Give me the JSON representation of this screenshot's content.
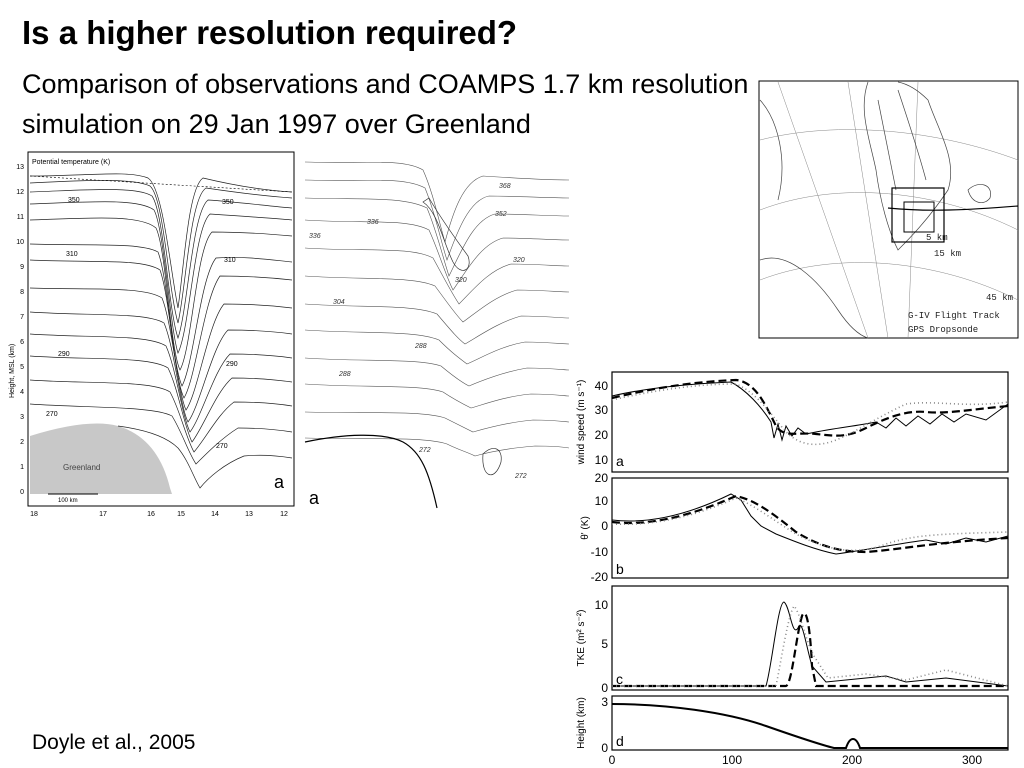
{
  "slide": {
    "title": "Is a higher resolution required?",
    "subtitle": "Comparison of observations and COAMPS 1.7 km resolution simulation on 29 Jan 1997 over Greenland",
    "citation": "Doyle et al., 2005"
  },
  "cross_section_left": {
    "legend_title": "Potential temperature (K)",
    "ylabel": "Height, MSL (km)",
    "yticks": [
      "0",
      "1",
      "2",
      "3",
      "4",
      "5",
      "6",
      "7",
      "8",
      "9",
      "10",
      "11",
      "12",
      "13"
    ],
    "xticks": [
      "18",
      "17",
      "16",
      "15",
      "14",
      "13",
      "12"
    ],
    "contour_labels": [
      "350",
      "350",
      "310",
      "310",
      "290",
      "290",
      "270",
      "270"
    ],
    "terrain_label": "Greenland",
    "scalebar_label": "100 km",
    "panel_label": "a"
  },
  "cross_section_right": {
    "contour_labels": [
      "368",
      "352",
      "336",
      "336",
      "320",
      "320",
      "304",
      "288",
      "288",
      "272",
      "272"
    ],
    "panel_label": "a"
  },
  "map": {
    "labels": [
      "5 km",
      "15 km",
      "45 km",
      "G-IV Flight Track",
      "GPS Dropsonde"
    ]
  },
  "timeseries": {
    "xticks": [
      "0",
      "100",
      "200",
      "300"
    ],
    "panels": [
      {
        "id": "a",
        "ylabel": "wind speed (m s⁻¹)",
        "yticks": [
          "10",
          "20",
          "30",
          "40"
        ]
      },
      {
        "id": "b",
        "ylabel": "θ' (K)",
        "yticks": [
          "-20",
          "-10",
          "0",
          "10",
          "20"
        ]
      },
      {
        "id": "c",
        "ylabel": "TKE (m² s⁻²)",
        "yticks": [
          "0",
          "5",
          "10"
        ]
      },
      {
        "id": "d",
        "ylabel": "Height (km)",
        "yticks": [
          "0",
          "3"
        ]
      }
    ]
  }
}
